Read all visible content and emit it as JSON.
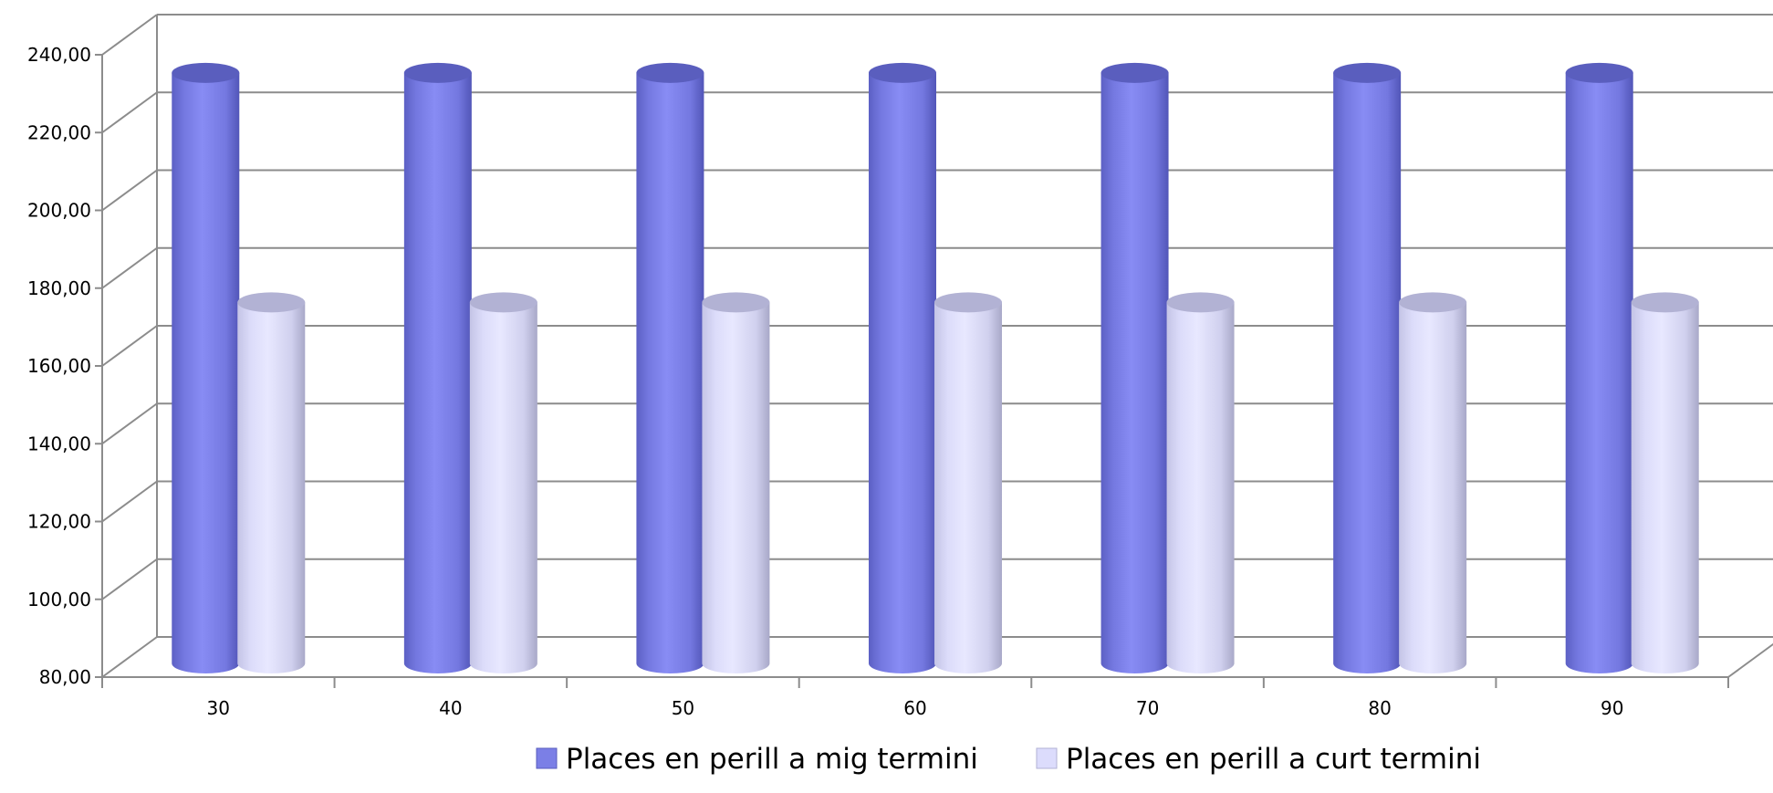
{
  "chart_data": {
    "type": "bar",
    "style": "3d-cylinder",
    "categories": [
      "30",
      "40",
      "50",
      "60",
      "70",
      "80",
      "90"
    ],
    "series": [
      {
        "name": "Places en perill a mig termini",
        "values": [
          229,
          229,
          229,
          229,
          229,
          229,
          229
        ],
        "color": "#7b7fe6"
      },
      {
        "name": "Places en perill a curt termini",
        "values": [
          170,
          170,
          170,
          170,
          170,
          170,
          170
        ],
        "color": "#dcdcfc"
      }
    ],
    "ylim": [
      80,
      240
    ],
    "yticks": [
      80,
      100,
      120,
      140,
      160,
      180,
      200,
      220,
      240
    ],
    "ytick_labels": [
      "80,00",
      "100,00",
      "120,00",
      "140,00",
      "160,00",
      "180,00",
      "200,00",
      "220,00",
      "240,00"
    ],
    "title": "",
    "xlabel": "",
    "ylabel": "",
    "grid": true,
    "legend_position": "bottom"
  }
}
